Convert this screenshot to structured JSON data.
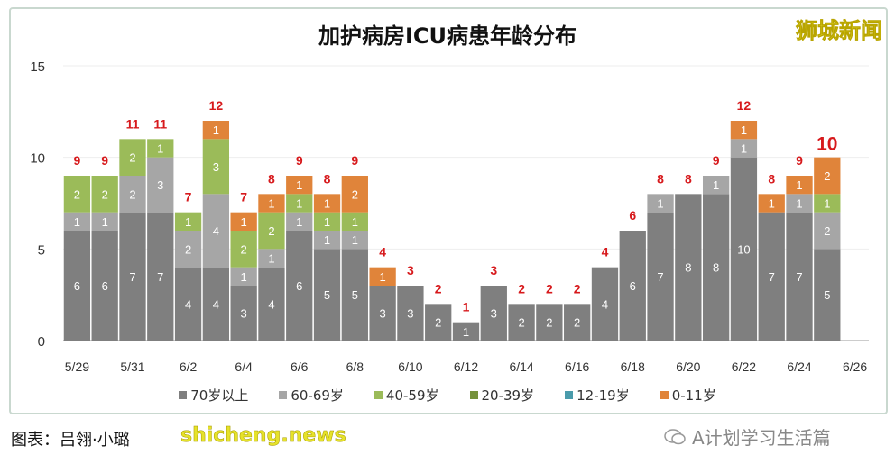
{
  "chart_data": {
    "type": "bar",
    "stacked": true,
    "title": "加护病房ICU病患年龄分布",
    "categories": [
      "5/29",
      "5/30",
      "5/31",
      "6/1",
      "6/2",
      "6/3",
      "6/4",
      "6/5",
      "6/6",
      "6/7",
      "6/8",
      "6/9",
      "6/10",
      "6/11",
      "6/12",
      "6/13",
      "6/14",
      "6/15",
      "6/16",
      "6/17",
      "6/18",
      "6/19",
      "6/20",
      "6/21",
      "6/22",
      "6/23",
      "6/24",
      "6/25",
      "6/26"
    ],
    "x_tick_labels": [
      "5/29",
      "5/31",
      "6/2",
      "6/4",
      "6/6",
      "6/8",
      "6/10",
      "6/12",
      "6/14",
      "6/16",
      "6/18",
      "6/20",
      "6/22",
      "6/24",
      "6/26"
    ],
    "y_ticks": [
      0,
      5,
      10,
      15
    ],
    "ylim": [
      0,
      15
    ],
    "grid": true,
    "legend_position": "bottom",
    "series": [
      {
        "name": "70岁以上",
        "color": "#7f7f7f",
        "values": [
          6,
          6,
          7,
          7,
          4,
          4,
          3,
          4,
          6,
          5,
          5,
          3,
          3,
          2,
          1,
          3,
          2,
          2,
          2,
          4,
          6,
          7,
          8,
          8,
          10,
          7,
          7,
          5,
          0
        ]
      },
      {
        "name": "60-69岁",
        "color": "#a6a6a6",
        "values": [
          1,
          1,
          2,
          3,
          2,
          4,
          1,
          1,
          1,
          1,
          1,
          0,
          0,
          0,
          0,
          0,
          0,
          0,
          0,
          0,
          0,
          1,
          0,
          1,
          1,
          0,
          1,
          2,
          0
        ]
      },
      {
        "name": "40-59岁",
        "color": "#9bbb59",
        "values": [
          2,
          2,
          2,
          1,
          1,
          3,
          2,
          2,
          1,
          1,
          1,
          0,
          0,
          0,
          0,
          0,
          0,
          0,
          0,
          0,
          0,
          0,
          0,
          0,
          0,
          0,
          0,
          1,
          0
        ]
      },
      {
        "name": "20-39岁",
        "color": "#76923c",
        "values": [
          0,
          0,
          0,
          0,
          0,
          0,
          0,
          0,
          0,
          0,
          0,
          0,
          0,
          0,
          0,
          0,
          0,
          0,
          0,
          0,
          0,
          0,
          0,
          0,
          0,
          0,
          0,
          0,
          0
        ]
      },
      {
        "name": "12-19岁",
        "color": "#4a9bab",
        "values": [
          0,
          0,
          0,
          0,
          0,
          0,
          0,
          0,
          0,
          0,
          0,
          0,
          0,
          0,
          0,
          0,
          0,
          0,
          0,
          0,
          0,
          0,
          0,
          0,
          0,
          0,
          0,
          0,
          0
        ]
      },
      {
        "name": "0-11岁",
        "color": "#e0843a",
        "values": [
          0,
          0,
          0,
          0,
          0,
          1,
          1,
          1,
          1,
          1,
          2,
          1,
          0,
          0,
          0,
          0,
          0,
          0,
          0,
          0,
          0,
          0,
          0,
          0,
          1,
          1,
          1,
          2,
          0
        ]
      }
    ],
    "totals": [
      9,
      9,
      11,
      11,
      7,
      12,
      7,
      8,
      9,
      8,
      9,
      4,
      3,
      2,
      1,
      3,
      2,
      2,
      2,
      4,
      6,
      8,
      8,
      9,
      12,
      8,
      9,
      10,
      null
    ],
    "total_label_color": "#d7191c"
  },
  "watermark_top": "狮城新闻",
  "footer": {
    "credit": "图表：吕翎·小璐",
    "watermark": "shicheng.news",
    "wechat_account": "A计划学习生活篇"
  }
}
